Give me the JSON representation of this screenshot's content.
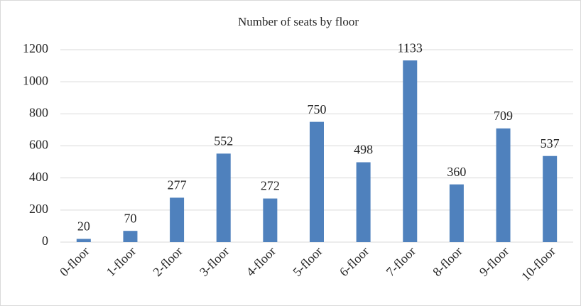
{
  "chart_data": {
    "type": "bar",
    "title": "Number of seats by floor",
    "categories": [
      "0-floor",
      "1-floor",
      "2-floor",
      "3-floor",
      "4-floor",
      "5-floor",
      "6-floor",
      "7-floor",
      "8-floor",
      "9-floor",
      "10-floor"
    ],
    "values": [
      20,
      70,
      277,
      552,
      272,
      750,
      498,
      1133,
      360,
      709,
      537
    ],
    "color": "#4f81bd",
    "ylim": [
      0,
      1200
    ],
    "yticks": [
      0,
      200,
      400,
      600,
      800,
      1000,
      1200
    ],
    "grid": true
  }
}
